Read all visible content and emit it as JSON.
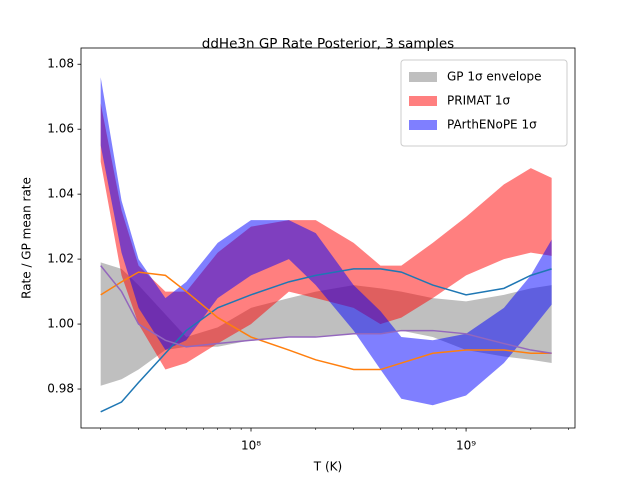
{
  "chart_data": {
    "type": "line",
    "title": "ddHe3n GP Rate Posterior, 3 samples",
    "xlabel": "T (K)",
    "ylabel": "Rate / GP mean rate",
    "xscale": "log",
    "xlim": [
      16200000,
      3210000000
    ],
    "ylim": [
      0.968,
      1.085
    ],
    "xticks": [
      {
        "value": 100000000,
        "label": "10⁸"
      },
      {
        "value": 1000000000,
        "label": "10⁹"
      }
    ],
    "yticks": [
      0.98,
      {
        "value": 1.0,
        "label": "1.00"
      },
      1.02,
      1.04,
      1.06,
      1.08
    ],
    "legend": "upper right",
    "x": [
      20000000,
      25000000,
      30000000,
      40000000,
      50000000,
      70000000,
      100000000,
      150000000,
      200000000,
      300000000,
      400000000,
      500000000,
      700000000,
      1000000000,
      1500000000,
      2000000000,
      2500000000
    ],
    "bands": [
      {
        "name": "GP 1σ envelope",
        "color": "#808080",
        "lower": [
          0.981,
          0.983,
          0.986,
          0.992,
          0.993,
          0.993,
          0.995,
          0.996,
          0.996,
          0.997,
          0.997,
          0.998,
          0.996,
          0.992,
          0.99,
          0.989,
          0.988
        ],
        "upper": [
          1.019,
          1.017,
          1.012,
          1.003,
          0.996,
          0.999,
          1.005,
          1.008,
          1.01,
          1.012,
          1.011,
          1.01,
          1.008,
          1.007,
          1.009,
          1.011,
          1.012
        ]
      },
      {
        "name": "PRIMAT 1σ",
        "color": "#ff0000",
        "lower": [
          1.05,
          1.015,
          1.0,
          0.986,
          0.988,
          0.994,
          1.0,
          1.01,
          1.008,
          1.005,
          1.0,
          1.002,
          1.008,
          1.015,
          1.02,
          1.022,
          1.021
        ],
        "upper": [
          1.068,
          1.035,
          1.018,
          1.01,
          1.01,
          1.022,
          1.03,
          1.032,
          1.032,
          1.025,
          1.018,
          1.018,
          1.025,
          1.033,
          1.043,
          1.048,
          1.045
        ]
      },
      {
        "name": "PArthENoPE 1σ",
        "color": "#0000ff",
        "lower": [
          1.055,
          1.022,
          1.005,
          0.992,
          0.995,
          1.008,
          1.015,
          1.02,
          1.012,
          0.998,
          0.986,
          0.977,
          0.975,
          0.978,
          0.988,
          0.998,
          1.006
        ],
        "upper": [
          1.076,
          1.038,
          1.02,
          1.008,
          1.013,
          1.025,
          1.032,
          1.032,
          1.028,
          1.012,
          1.004,
          0.996,
          0.995,
          0.997,
          1.005,
          1.015,
          1.026
        ]
      }
    ],
    "series": [
      {
        "color": "#1f77b4",
        "values": [
          0.973,
          0.976,
          0.982,
          0.991,
          0.998,
          1.005,
          1.009,
          1.013,
          1.015,
          1.017,
          1.017,
          1.016,
          1.012,
          1.009,
          1.011,
          1.015,
          1.017
        ]
      },
      {
        "color": "#ff7f0e",
        "values": [
          1.009,
          1.013,
          1.016,
          1.015,
          1.01,
          1.002,
          0.996,
          0.992,
          0.989,
          0.986,
          0.986,
          0.988,
          0.991,
          0.992,
          0.992,
          0.991,
          0.991
        ]
      },
      {
        "color": "#9467bd",
        "values": [
          1.018,
          1.01,
          1.0,
          0.995,
          0.993,
          0.994,
          0.995,
          0.996,
          0.996,
          0.997,
          0.997,
          0.998,
          0.998,
          0.997,
          0.994,
          0.992,
          0.991
        ]
      }
    ]
  }
}
